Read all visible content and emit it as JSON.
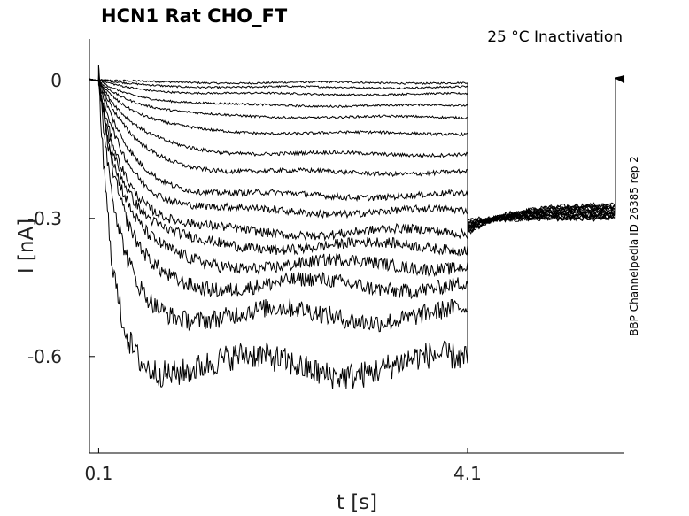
{
  "chart_data": {
    "type": "line",
    "title": "HCN1  Rat  CHO_FT",
    "condition": "25 °C  Inactivation",
    "side_label": "BBP Channelpedia ID 26385 rep 2",
    "xlabel": "t [s]",
    "ylabel": "I [nA]",
    "xlim": [
      0.0,
      5.8
    ],
    "ylim": [
      -0.81,
      0.09
    ],
    "xticks": [
      {
        "value": 0.1,
        "label": "0.1"
      },
      {
        "value": 4.1,
        "label": "4.1"
      }
    ],
    "yticks": [
      {
        "value": 0,
        "label": "0"
      },
      {
        "value": -0.3,
        "label": "-0.3"
      },
      {
        "value": -0.6,
        "label": "-0.6"
      }
    ],
    "pulse": {
      "start": 0.1,
      "end": 4.1,
      "tail_end": 5.7
    },
    "series_steady_state_nA": [
      -0.005,
      -0.015,
      -0.03,
      -0.055,
      -0.08,
      -0.115,
      -0.16,
      -0.2,
      -0.25,
      -0.285,
      -0.33,
      -0.36,
      -0.4,
      -0.445,
      -0.51,
      -0.62
    ],
    "tail_level_nA": -0.27
  },
  "colors": {
    "trace": "#000000",
    "axis": "#000000",
    "background": "#ffffff"
  }
}
